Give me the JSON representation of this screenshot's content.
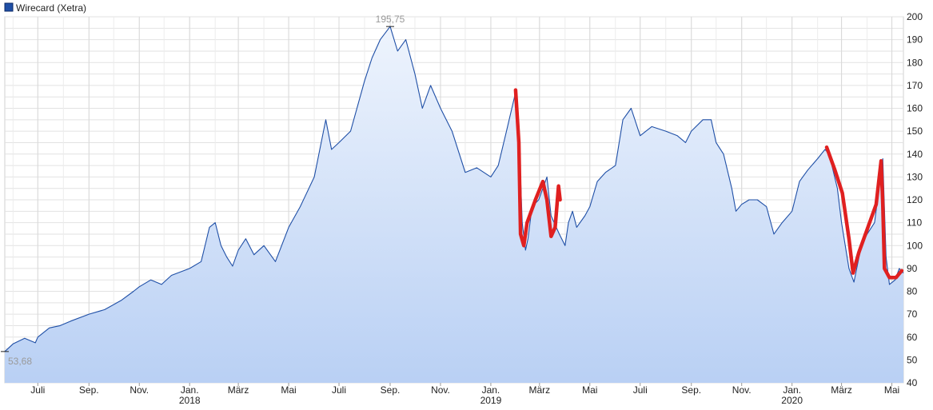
{
  "chart_data": {
    "type": "area",
    "title": "",
    "xlabel": "",
    "ylabel": "",
    "legend": {
      "label": "Wirecard (Xetra)",
      "position": "top-left",
      "color": "#1f4fa6"
    },
    "ylim": [
      40,
      200
    ],
    "y_axis_side": "right",
    "y_ticks": [
      "40",
      "50",
      "60",
      "70",
      "80",
      "90",
      "100",
      "110",
      "120",
      "130",
      "140",
      "150",
      "160",
      "170",
      "180",
      "190",
      "200"
    ],
    "x_range": [
      "2017-05-22",
      "2020-05-15"
    ],
    "x_ticks": [
      {
        "label": "Juli",
        "year": "",
        "date": "2017-07-01"
      },
      {
        "label": "Sep.",
        "year": "",
        "date": "2017-09-01"
      },
      {
        "label": "Nov.",
        "year": "",
        "date": "2017-11-01"
      },
      {
        "label": "Jan.",
        "year": "2018",
        "date": "2018-01-01"
      },
      {
        "label": "März",
        "year": "",
        "date": "2018-03-01"
      },
      {
        "label": "Mai",
        "year": "",
        "date": "2018-05-01"
      },
      {
        "label": "Juli",
        "year": "",
        "date": "2018-07-01"
      },
      {
        "label": "Sep.",
        "year": "",
        "date": "2018-09-01"
      },
      {
        "label": "Nov.",
        "year": "",
        "date": "2018-11-01"
      },
      {
        "label": "Jan.",
        "year": "2019",
        "date": "2019-01-01"
      },
      {
        "label": "März",
        "year": "",
        "date": "2019-03-01"
      },
      {
        "label": "Mai",
        "year": "",
        "date": "2019-05-01"
      },
      {
        "label": "Juli",
        "year": "",
        "date": "2019-07-01"
      },
      {
        "label": "Sep.",
        "year": "",
        "date": "2019-09-01"
      },
      {
        "label": "Nov.",
        "year": "",
        "date": "2019-11-01"
      },
      {
        "label": "Jan.",
        "year": "2020",
        "date": "2020-01-01"
      },
      {
        "label": "März",
        "year": "",
        "date": "2020-03-01"
      },
      {
        "label": "Mai",
        "year": "",
        "date": "2020-05-01"
      }
    ],
    "grid": true,
    "series": [
      {
        "name": "Wirecard (Xetra)",
        "color": "#1f4fa6",
        "fill_gradient": [
          "#eef4fd",
          "#b9d0f4"
        ],
        "points": [
          [
            "2017-05-22",
            53.7
          ],
          [
            "2017-06-01",
            57.0
          ],
          [
            "2017-06-15",
            59.5
          ],
          [
            "2017-06-28",
            57.5
          ],
          [
            "2017-07-01",
            60.0
          ],
          [
            "2017-07-15",
            64.0
          ],
          [
            "2017-07-28",
            65.0
          ],
          [
            "2017-08-10",
            67.0
          ],
          [
            "2017-09-01",
            70.0
          ],
          [
            "2017-09-20",
            72.0
          ],
          [
            "2017-10-10",
            76.0
          ],
          [
            "2017-10-25",
            80.0
          ],
          [
            "2017-11-01",
            82.0
          ],
          [
            "2017-11-15",
            85.0
          ],
          [
            "2017-11-28",
            83.0
          ],
          [
            "2017-12-10",
            87.0
          ],
          [
            "2018-01-01",
            90.0
          ],
          [
            "2018-01-15",
            93.0
          ],
          [
            "2018-01-25",
            108.0
          ],
          [
            "2018-02-01",
            110.0
          ],
          [
            "2018-02-08",
            100.0
          ],
          [
            "2018-02-15",
            95.0
          ],
          [
            "2018-02-22",
            91.0
          ],
          [
            "2018-03-01",
            98.0
          ],
          [
            "2018-03-10",
            103.0
          ],
          [
            "2018-03-20",
            96.0
          ],
          [
            "2018-04-01",
            100.0
          ],
          [
            "2018-04-15",
            93.0
          ],
          [
            "2018-05-01",
            108.0
          ],
          [
            "2018-05-15",
            117.0
          ],
          [
            "2018-06-01",
            130.0
          ],
          [
            "2018-06-15",
            155.0
          ],
          [
            "2018-06-22",
            142.0
          ],
          [
            "2018-07-01",
            145.0
          ],
          [
            "2018-07-15",
            150.0
          ],
          [
            "2018-08-01",
            172.0
          ],
          [
            "2018-08-10",
            182.0
          ],
          [
            "2018-08-20",
            190.0
          ],
          [
            "2018-09-01",
            195.75
          ],
          [
            "2018-09-10",
            185.0
          ],
          [
            "2018-09-20",
            190.0
          ],
          [
            "2018-10-01",
            175.0
          ],
          [
            "2018-10-10",
            160.0
          ],
          [
            "2018-10-20",
            170.0
          ],
          [
            "2018-11-01",
            160.0
          ],
          [
            "2018-11-15",
            150.0
          ],
          [
            "2018-12-01",
            132.0
          ],
          [
            "2018-12-15",
            134.0
          ],
          [
            "2019-01-01",
            130.0
          ],
          [
            "2019-01-10",
            135.0
          ],
          [
            "2019-01-20",
            150.0
          ],
          [
            "2019-01-31",
            167.0
          ],
          [
            "2019-02-05",
            140.0
          ],
          [
            "2019-02-08",
            110.0
          ],
          [
            "2019-02-12",
            98.0
          ],
          [
            "2019-02-15",
            103.0
          ],
          [
            "2019-02-20",
            117.0
          ],
          [
            "2019-02-28",
            120.0
          ],
          [
            "2019-03-05",
            125.0
          ],
          [
            "2019-03-10",
            130.0
          ],
          [
            "2019-03-15",
            113.0
          ],
          [
            "2019-03-25",
            105.0
          ],
          [
            "2019-04-01",
            100.0
          ],
          [
            "2019-04-05",
            110.0
          ],
          [
            "2019-04-10",
            115.0
          ],
          [
            "2019-04-15",
            108.0
          ],
          [
            "2019-04-25",
            113.0
          ],
          [
            "2019-05-01",
            117.0
          ],
          [
            "2019-05-10",
            128.0
          ],
          [
            "2019-05-20",
            132.0
          ],
          [
            "2019-06-01",
            135.0
          ],
          [
            "2019-06-10",
            155.0
          ],
          [
            "2019-06-20",
            160.0
          ],
          [
            "2019-07-01",
            148.0
          ],
          [
            "2019-07-15",
            152.0
          ],
          [
            "2019-08-01",
            150.0
          ],
          [
            "2019-08-15",
            148.0
          ],
          [
            "2019-08-25",
            145.0
          ],
          [
            "2019-09-01",
            150.0
          ],
          [
            "2019-09-15",
            155.0
          ],
          [
            "2019-09-25",
            155.0
          ],
          [
            "2019-10-01",
            145.0
          ],
          [
            "2019-10-10",
            140.0
          ],
          [
            "2019-10-20",
            125.0
          ],
          [
            "2019-10-25",
            115.0
          ],
          [
            "2019-11-01",
            118.0
          ],
          [
            "2019-11-10",
            120.0
          ],
          [
            "2019-11-20",
            120.0
          ],
          [
            "2019-12-01",
            117.0
          ],
          [
            "2019-12-10",
            105.0
          ],
          [
            "2019-12-20",
            110.0
          ],
          [
            "2020-01-01",
            115.0
          ],
          [
            "2020-01-10",
            128.0
          ],
          [
            "2020-01-20",
            133.0
          ],
          [
            "2020-02-01",
            138.0
          ],
          [
            "2020-02-10",
            142.0
          ],
          [
            "2020-02-15",
            140.0
          ],
          [
            "2020-02-25",
            125.0
          ],
          [
            "2020-03-01",
            110.0
          ],
          [
            "2020-03-10",
            90.0
          ],
          [
            "2020-03-16",
            84.0
          ],
          [
            "2020-03-25",
            100.0
          ],
          [
            "2020-04-01",
            105.0
          ],
          [
            "2020-04-10",
            110.0
          ],
          [
            "2020-04-20",
            138.0
          ],
          [
            "2020-04-24",
            95.0
          ],
          [
            "2020-04-28",
            83.0
          ],
          [
            "2020-05-05",
            85.0
          ],
          [
            "2020-05-10",
            90.0
          ],
          [
            "2020-05-15",
            88.0
          ]
        ]
      }
    ],
    "annotations": [
      {
        "text": "195,75",
        "date": "2018-09-01",
        "value": 195.75,
        "kind": "max"
      },
      {
        "text": "53,68",
        "date": "2017-05-22",
        "value": 53.68,
        "kind": "min"
      }
    ],
    "overlay_strokes": {
      "color": "#e02020",
      "strokes": [
        [
          [
            "2019-01-31",
            168
          ],
          [
            "2019-02-04",
            145
          ],
          [
            "2019-02-06",
            105
          ],
          [
            "2019-02-10",
            100
          ],
          [
            "2019-02-14",
            110
          ],
          [
            "2019-02-24",
            120
          ],
          [
            "2019-03-05",
            128
          ],
          [
            "2019-03-10",
            120
          ],
          [
            "2019-03-15",
            104
          ],
          [
            "2019-03-20",
            108
          ],
          [
            "2019-03-24",
            126
          ],
          [
            "2019-03-26",
            120
          ]
        ],
        [
          [
            "2020-02-12",
            143
          ],
          [
            "2020-02-22",
            133
          ],
          [
            "2020-03-02",
            123
          ],
          [
            "2020-03-10",
            103
          ],
          [
            "2020-03-15",
            88
          ],
          [
            "2020-03-22",
            97
          ],
          [
            "2020-04-02",
            108
          ],
          [
            "2020-04-12",
            118
          ],
          [
            "2020-04-18",
            137
          ],
          [
            "2020-04-20",
            118
          ],
          [
            "2020-04-22",
            90
          ],
          [
            "2020-04-28",
            86
          ],
          [
            "2020-05-06",
            86
          ],
          [
            "2020-05-13",
            89
          ]
        ]
      ]
    }
  }
}
